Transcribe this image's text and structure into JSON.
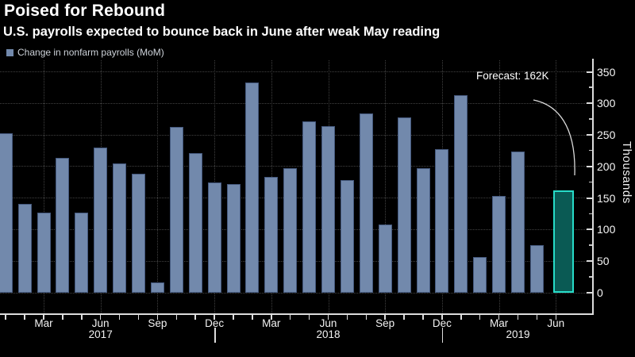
{
  "header": {
    "title": "Poised for Rebound",
    "subtitle": "U.S. payrolls expected to bounce back in June after weak May reading"
  },
  "legend": {
    "label": "Change in nonfarm payrolls (MoM)",
    "swatch_color": "#7289ac"
  },
  "annotation": {
    "text": "Forecast: 162K"
  },
  "y_axis": {
    "unit_label": "Thousands",
    "ticks": [
      0,
      50,
      100,
      150,
      200,
      250,
      300,
      350
    ],
    "minor_ticks": [
      25,
      75,
      125,
      175,
      225,
      275,
      325
    ]
  },
  "x_axis": {
    "quarter_months": [
      "Mar",
      "Jun",
      "Sep",
      "Dec"
    ],
    "year_labels": [
      {
        "text": "2017",
        "anchor": "Jun 2017"
      },
      {
        "text": "2018",
        "anchor": "Jun 2018"
      },
      {
        "text": "2019",
        "anchor": "Apr 2019"
      }
    ]
  },
  "chart_data": {
    "type": "bar",
    "title": "Poised for Rebound",
    "subtitle": "U.S. payrolls expected to bounce back in June after weak May reading",
    "series_name": "Change in nonfarm payrolls (MoM)",
    "unit": "thousands",
    "ylabel": "Thousands",
    "ylim": [
      0,
      350
    ],
    "grid": "dotted",
    "legend_position": "top-left",
    "x": [
      "Jan 2017",
      "Feb 2017",
      "Mar 2017",
      "Apr 2017",
      "May 2017",
      "Jun 2017",
      "Jul 2017",
      "Aug 2017",
      "Sep 2017",
      "Oct 2017",
      "Nov 2017",
      "Dec 2017",
      "Jan 2018",
      "Feb 2018",
      "Mar 2018",
      "Apr 2018",
      "May 2018",
      "Jun 2018",
      "Jul 2018",
      "Aug 2018",
      "Sep 2018",
      "Oct 2018",
      "Nov 2018",
      "Dec 2018",
      "Jan 2019",
      "Feb 2019",
      "Mar 2019",
      "Apr 2019",
      "May 2019",
      "Jun 2019"
    ],
    "values": [
      253,
      141,
      127,
      214,
      127,
      230,
      205,
      188,
      16,
      263,
      221,
      175,
      172,
      333,
      184,
      197,
      271,
      264,
      179,
      284,
      108,
      278,
      197,
      228,
      313,
      56,
      153,
      224,
      75,
      162
    ],
    "forecast": {
      "month": "Jun 2019",
      "value": 162,
      "index": 29,
      "label": "Forecast: 162K"
    },
    "colors": {
      "bar": "#7289ac",
      "bar_border": "#45597e",
      "forecast_fill": "#0a5a54",
      "forecast_border": "#27dcc8",
      "background": "#000000",
      "axis": "#dcdcdc",
      "gridline": "#414141"
    }
  }
}
